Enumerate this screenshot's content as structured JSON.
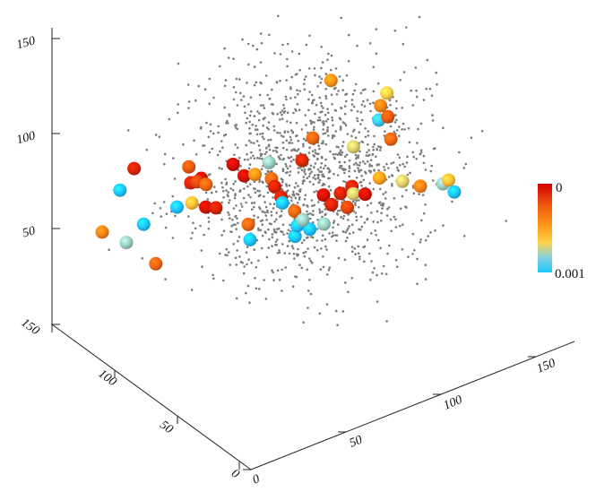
{
  "chart_data": {
    "type": "scatter",
    "projection": "3d",
    "title": "",
    "axes": {
      "x": {
        "range": [
          0,
          170
        ],
        "ticks": [
          0,
          50,
          100,
          150
        ],
        "tick_labels": [
          "0",
          "50",
          "100",
          "150"
        ]
      },
      "y": {
        "range": [
          0,
          160
        ],
        "ticks": [
          0,
          50,
          100,
          150
        ],
        "tick_labels": [
          "0",
          "50",
          "100",
          "150"
        ]
      },
      "z": {
        "range": [
          0,
          160
        ],
        "ticks": [
          50,
          100,
          150
        ],
        "tick_labels": [
          "50",
          "100",
          "150"
        ]
      }
    },
    "grid": false,
    "colorbar": {
      "top_label": "0",
      "bottom_label": "0.001",
      "stops": [
        "#d40000",
        "#ee5a10",
        "#ffa21a",
        "#ffd24a",
        "#8ed2d8",
        "#1dc8ff"
      ],
      "placement": "right"
    },
    "background_points": {
      "count": 1400,
      "color": "#7c7c7c",
      "x_range": [
        0,
        170
      ],
      "y_range": [
        0,
        160
      ],
      "z_range": [
        25,
        150
      ]
    },
    "series": [
      {
        "points": [
          {
            "x": 62,
            "y": 45,
            "z": 128,
            "p": 0.0003
          },
          {
            "x": 55,
            "y": 43,
            "z": 120,
            "p": 0.00012
          },
          {
            "x": 88,
            "y": 70,
            "z": 136,
            "p": 0.00045
          },
          {
            "x": 41,
            "y": 48,
            "z": 122,
            "p": 0.0008
          },
          {
            "x": 100,
            "y": 50,
            "z": 120,
            "p": 0.00095
          },
          {
            "x": 33,
            "y": 100,
            "z": 98,
            "p": 0.00025
          },
          {
            "x": 31,
            "y": 87,
            "z": 99,
            "p": 5e-05
          },
          {
            "x": 51,
            "y": 92,
            "z": 96,
            "p": 4e-05
          },
          {
            "x": 45,
            "y": 74,
            "z": 101,
            "p": 5e-05
          },
          {
            "x": 86,
            "y": 49,
            "z": 112,
            "p": 0.0007
          },
          {
            "x": 110,
            "y": 58,
            "z": 114,
            "p": 0.00025
          },
          {
            "x": 105,
            "y": 48,
            "z": 109,
            "p": 0.0003
          },
          {
            "x": 118,
            "y": 71,
            "z": 117,
            "p": 0.00065
          },
          {
            "x": 118,
            "y": 76,
            "z": 108,
            "p": 0.0004
          },
          {
            "x": 18,
            "y": 121,
            "z": 93,
            "p": 0.0001
          },
          {
            "x": 36,
            "y": 103,
            "z": 87,
            "p": 0.0001
          },
          {
            "x": 36,
            "y": 98,
            "z": 90,
            "p": 0.0002
          },
          {
            "x": 52,
            "y": 76,
            "z": 98,
            "p": 0.00045
          },
          {
            "x": 60,
            "y": 75,
            "z": 93,
            "p": 0.0003
          },
          {
            "x": 51,
            "y": 125,
            "z": 60,
            "p": 0.0006
          },
          {
            "x": 61,
            "y": 74,
            "z": 89,
            "p": 0.0001
          },
          {
            "x": 69,
            "y": 81,
            "z": 77,
            "p": 0.0001
          },
          {
            "x": 73,
            "y": 86,
            "z": 70,
            "p": 0.001
          },
          {
            "x": 88,
            "y": 76,
            "z": 73,
            "p": 5e-05
          },
          {
            "x": 4,
            "y": 111,
            "z": 92,
            "p": 0.001
          },
          {
            "x": 44,
            "y": 103,
            "z": 83,
            "p": 0.0003
          },
          {
            "x": 36,
            "y": 91,
            "z": 80,
            "p": 5e-05
          },
          {
            "x": 40,
            "y": 89,
            "z": 79,
            "p": 0.0001
          },
          {
            "x": 91,
            "y": 67,
            "z": 77,
            "p": 0.0001
          },
          {
            "x": 99,
            "y": 70,
            "z": 76,
            "p": 0.0001
          },
          {
            "x": 99,
            "y": 48,
            "z": 91,
            "p": 0.0005
          },
          {
            "x": 110,
            "y": 32,
            "z": 90,
            "p": 0.0004
          },
          {
            "x": -2,
            "y": 116,
            "z": 70,
            "p": 0.0004
          },
          {
            "x": 105,
            "y": 78,
            "z": 66,
            "p": 0.0007
          },
          {
            "x": 36,
            "y": 114,
            "z": 69,
            "p": 0.001
          },
          {
            "x": 12,
            "y": 118,
            "z": 58,
            "p": 0.0008
          },
          {
            "x": 133,
            "y": 49,
            "z": 74,
            "p": 0.0008
          },
          {
            "x": 134,
            "y": 46,
            "z": 77,
            "p": 0.0006
          },
          {
            "x": 84,
            "y": 93,
            "z": 58,
            "p": 0.0003
          },
          {
            "x": 104,
            "y": 94,
            "z": 53,
            "p": 0.0001
          },
          {
            "x": 109,
            "y": 89,
            "z": 52,
            "p": 0.0002
          },
          {
            "x": 123,
            "y": 96,
            "z": 50,
            "p": 5e-05
          },
          {
            "x": 140,
            "y": 92,
            "z": 52,
            "p": 0.0007
          },
          {
            "x": 13,
            "y": 96,
            "z": 57,
            "p": 0.0003
          },
          {
            "x": 75,
            "y": 79,
            "z": 55,
            "p": 0.0035
          },
          {
            "x": 86,
            "y": 84,
            "z": 52,
            "p": 0.006
          },
          {
            "x": 86,
            "y": 94,
            "z": 49,
            "p": 0.001
          },
          {
            "x": 158,
            "y": 78,
            "z": 46,
            "p": 0.001
          },
          {
            "x": 78,
            "y": 121,
            "z": 40,
            "p": 0.0003
          },
          {
            "x": 75,
            "y": 115,
            "z": 36,
            "p": 0.001
          },
          {
            "x": 104,
            "y": 100,
            "z": 40,
            "p": 0.0008
          },
          {
            "x": 104,
            "y": 117,
            "z": 34,
            "p": 0.0008
          },
          {
            "x": 46,
            "y": 156,
            "z": 36,
            "p": 0.001
          }
        ]
      }
    ]
  }
}
